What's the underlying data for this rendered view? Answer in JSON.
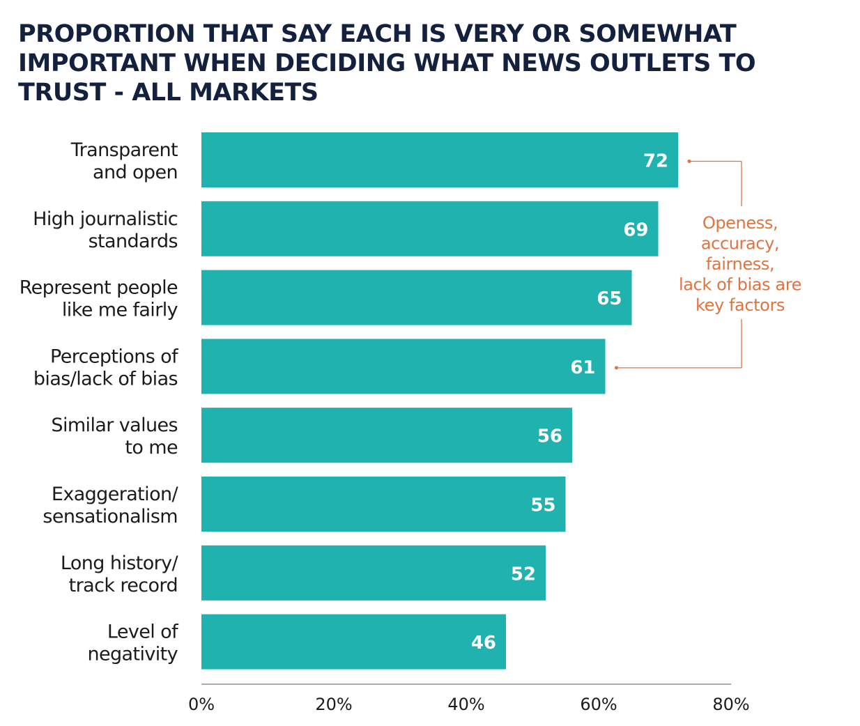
{
  "chart_data": {
    "type": "bar",
    "orientation": "horizontal",
    "title_lines": [
      "PROPORTION THAT SAY EACH IS VERY OR SOMEWHAT",
      "IMPORTANT WHEN DECIDING WHAT NEWS OUTLETS TO",
      "TRUST - ALL MARKETS"
    ],
    "categories": [
      [
        "Transparent",
        "and open"
      ],
      [
        "High journalistic",
        "standards"
      ],
      [
        "Represent people",
        "like me fairly"
      ],
      [
        "Perceptions of",
        "bias/lack of bias"
      ],
      [
        "Similar values",
        "to me"
      ],
      [
        "Exaggeration/",
        "sensationalism"
      ],
      [
        "Long history/",
        "track record"
      ],
      [
        "Level of",
        "negativity"
      ]
    ],
    "values": [
      72,
      69,
      65,
      61,
      56,
      55,
      52,
      46
    ],
    "xlim": [
      0,
      80
    ],
    "x_ticks": [
      0,
      20,
      40,
      60,
      80
    ],
    "x_tick_labels": [
      "0%",
      "20%",
      "40%",
      "60%",
      "80%"
    ],
    "grid": false,
    "colors": {
      "bar": "#1fb2ae",
      "annotation": "#e0733f",
      "title": "#13213f"
    },
    "annotation": {
      "lines": [
        "Openess,",
        "accuracy,",
        "fairness,",
        "lack of bias are",
        "key factors"
      ],
      "bracket_from_index": 0,
      "bracket_to_index": 3
    }
  }
}
